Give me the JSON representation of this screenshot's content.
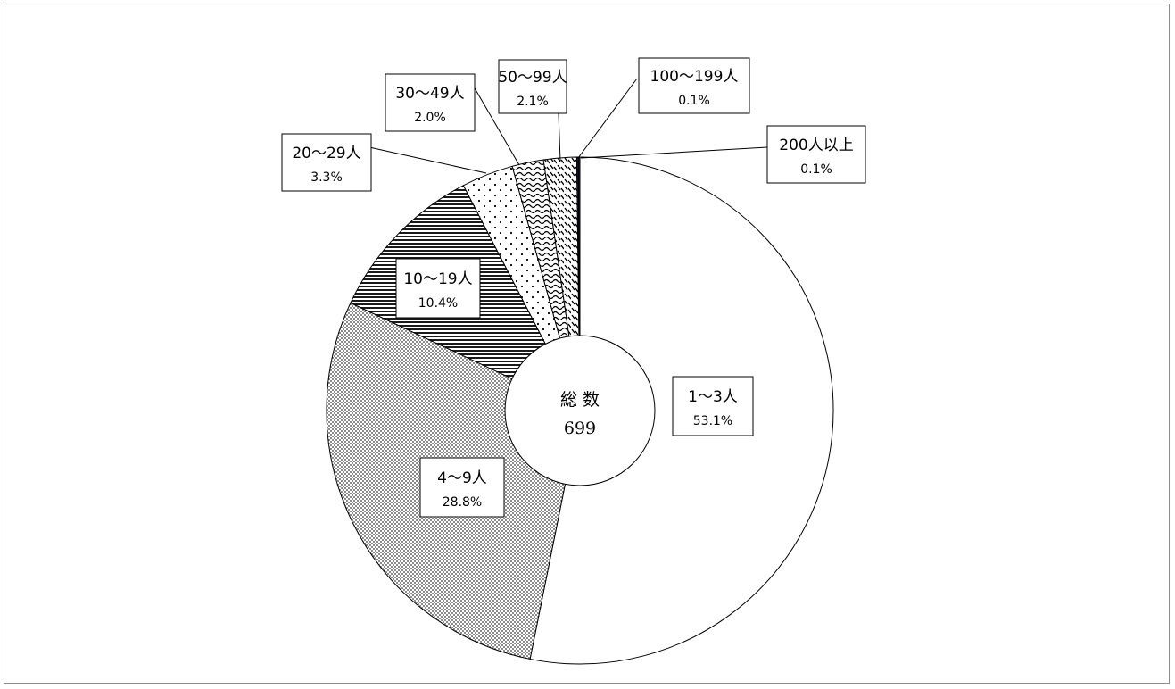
{
  "chart_data": {
    "type": "pie",
    "style": "donut",
    "center": {
      "label": "総 数",
      "total": "699"
    },
    "slices": [
      {
        "label": "1～3人",
        "percent_label": "53.1%",
        "value": 53.1,
        "pattern": "blank"
      },
      {
        "label": "4～9人",
        "percent_label": "28.8%",
        "value": 28.8,
        "pattern": "fine-dots"
      },
      {
        "label": "10～19人",
        "percent_label": "10.4%",
        "value": 10.4,
        "pattern": "horizontal-lines"
      },
      {
        "label": "20～29人",
        "percent_label": "3.3%",
        "value": 3.3,
        "pattern": "sparse-dots"
      },
      {
        "label": "30～49人",
        "percent_label": "2.0%",
        "value": 2.0,
        "pattern": "wave"
      },
      {
        "label": "50～99人",
        "percent_label": "2.1%",
        "value": 2.1,
        "pattern": "diagonal-dashes"
      },
      {
        "label": "100～199人",
        "percent_label": "0.1%",
        "value": 0.1,
        "pattern": "solid-dark"
      },
      {
        "label": "200人以上",
        "percent_label": "0.1%",
        "value": 0.1,
        "pattern": "solid-dark"
      }
    ],
    "colors": {
      "stroke": "#000000",
      "fill": "#ffffff",
      "mark": "#000000",
      "frame": "#8c8c8c"
    }
  }
}
